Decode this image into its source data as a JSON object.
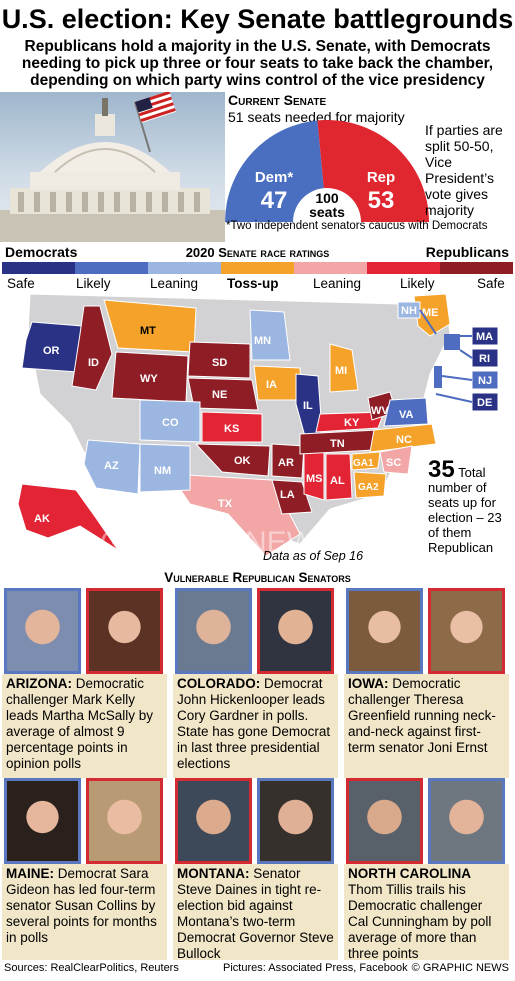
{
  "title": "U.S. election: Key Senate battlegrounds",
  "subtitle": "Republicans hold a majority in the U.S. Senate, with Democrats needing to pick up three or four seats to take back the chamber, depending on which party wins control of the vice presidency",
  "current_senate": {
    "heading": "Current Senate",
    "majority_note": "51 seats needed for majority",
    "dem_label": "Dem*",
    "dem_seats": "47",
    "rep_label": "Rep",
    "rep_seats": "53",
    "total_value": "100",
    "total_label": "seats",
    "split_note": "If parties are split 50-50, Vice President’s vote gives majority",
    "footnote": "*Two independent senators caucus with Democrats",
    "dem_value": 47,
    "rep_value": 53,
    "dem_color": "#4a6fc1",
    "rep_color": "#e0262f"
  },
  "ratings": {
    "left_label": "Democrats",
    "center_label": "2020 Senate race ratings",
    "right_label": "Republicans",
    "scale": [
      {
        "label": "Safe",
        "color": "#2a3286"
      },
      {
        "label": "Likely",
        "color": "#4e6cc0"
      },
      {
        "label": "Leaning",
        "color": "#9bb6e0"
      },
      {
        "label": "Toss-up",
        "color": "#f5a22a"
      },
      {
        "label": "Leaning",
        "color": "#f2a6a6"
      },
      {
        "label": "Likely",
        "color": "#e32434"
      },
      {
        "label": "Safe",
        "color": "#8e1d26"
      }
    ]
  },
  "map_labels": {
    "OR": "OR",
    "ID": "ID",
    "MT": "MT",
    "WY": "WY",
    "SD": "SD",
    "NE": "NE",
    "MN": "MN",
    "IA": "IA",
    "MI": "MI",
    "IL": "IL",
    "CO": "CO",
    "KS": "KS",
    "OK": "OK",
    "TX": "TX",
    "AZ": "AZ",
    "NM": "NM",
    "AR": "AR",
    "LA": "LA",
    "MS": "MS",
    "AL": "AL",
    "TN": "TN",
    "KY": "KY",
    "WV": "WV",
    "VA": "VA",
    "NC": "NC",
    "SC": "SC",
    "GA1": "GA1",
    "GA2": "GA2",
    "AK": "AK",
    "NH": "NH",
    "ME": "ME",
    "MA": "MA",
    "RI": "RI",
    "NJ": "NJ",
    "DE": "DE"
  },
  "seats_total": "35",
  "seats_text": "Total number of seats up for election – 23 of them Republican",
  "data_as_of": "Data as of Sep 16",
  "watermark": "GRAPHIC NEWS",
  "vulnerable_heading": "Vulnerable Republican Senators",
  "senators": [
    {
      "state": "ARIZONA:",
      "text": "Democratic challenger Mark Kelly leads Martha McSally by average of almost 9 percentage points in opinion polls"
    },
    {
      "state": "COLORADO:",
      "text": "Democrat John Hickenlooper leads Cory Gardner in polls. State has gone Democrat in last three presidential elections"
    },
    {
      "state": "IOWA:",
      "text": "Democratic challenger Theresa Greenfield running neck-and-neck against first-term senator Joni Ernst"
    },
    {
      "state": "MAINE:",
      "text": "Democrat Sara Gideon has led four-term senator Susan Collins by several points for months in polls"
    },
    {
      "state": "MONTANA:",
      "text": "Senator Steve Daines in tight re-election bid against Montana’s two-term Democrat Governor Steve Bullock"
    },
    {
      "state": "NORTH CAROLINA",
      "text": "Thom Tillis trails his Democratic challenger Cal Cunningham by poll average of more than three points"
    }
  ],
  "footer": {
    "sources": "Sources: RealClearPolitics, Reuters",
    "pictures": "Pictures: Associated Press, Facebook",
    "credit": "© GRAPHIC NEWS"
  }
}
